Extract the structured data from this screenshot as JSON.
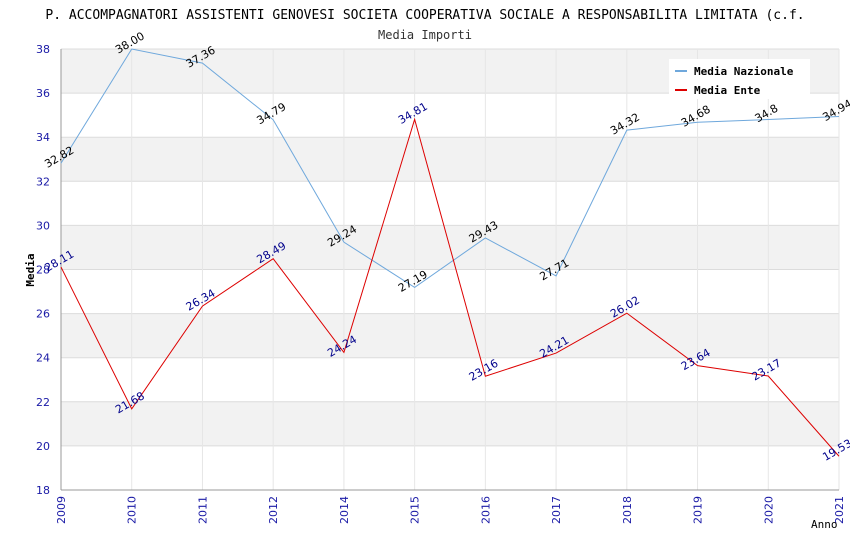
{
  "chart_data": {
    "type": "line",
    "title": "P. ACCOMPAGNATORI ASSISTENTI GENOVESI SOCIETA COOPERATIVA SOCIALE A RESPONSABILITA LIMITATA (c.f.",
    "subtitle": "Media Importi",
    "xlabel": "Anno",
    "ylabel": "Media",
    "categories": [
      "2009",
      "2010",
      "2011",
      "2012",
      "2014",
      "2015",
      "2016",
      "2017",
      "2018",
      "2019",
      "2020",
      "2021"
    ],
    "ylim": [
      18,
      38
    ],
    "yticks": [
      18,
      20,
      22,
      24,
      26,
      28,
      30,
      32,
      34,
      36,
      38
    ],
    "legend_position": "top-right",
    "series": [
      {
        "name": "Media Nazionale",
        "color": "#6fa8dc",
        "label_color": "#000000",
        "values": [
          32.82,
          38.0,
          37.36,
          34.79,
          29.24,
          27.19,
          29.43,
          27.71,
          34.32,
          34.68,
          34.8,
          34.94
        ],
        "labels": [
          "32.82",
          "38.00",
          "37.36",
          "34.79",
          "29.24",
          "27.19",
          "29.43",
          "27.71",
          "34.32",
          "34.68",
          "34.8",
          "34.94"
        ]
      },
      {
        "name": "Media Ente",
        "color": "#dd0000",
        "label_color": "#00008b",
        "values": [
          28.11,
          21.68,
          26.34,
          28.49,
          24.24,
          34.81,
          23.16,
          24.21,
          26.02,
          23.64,
          23.17,
          19.53
        ],
        "labels": [
          "28.11",
          "21.68",
          "26.34",
          "28.49",
          "24.24",
          "34.81",
          "23.16",
          "24.21",
          "26.02",
          "23.64",
          "23.17",
          "19.53"
        ]
      }
    ]
  }
}
